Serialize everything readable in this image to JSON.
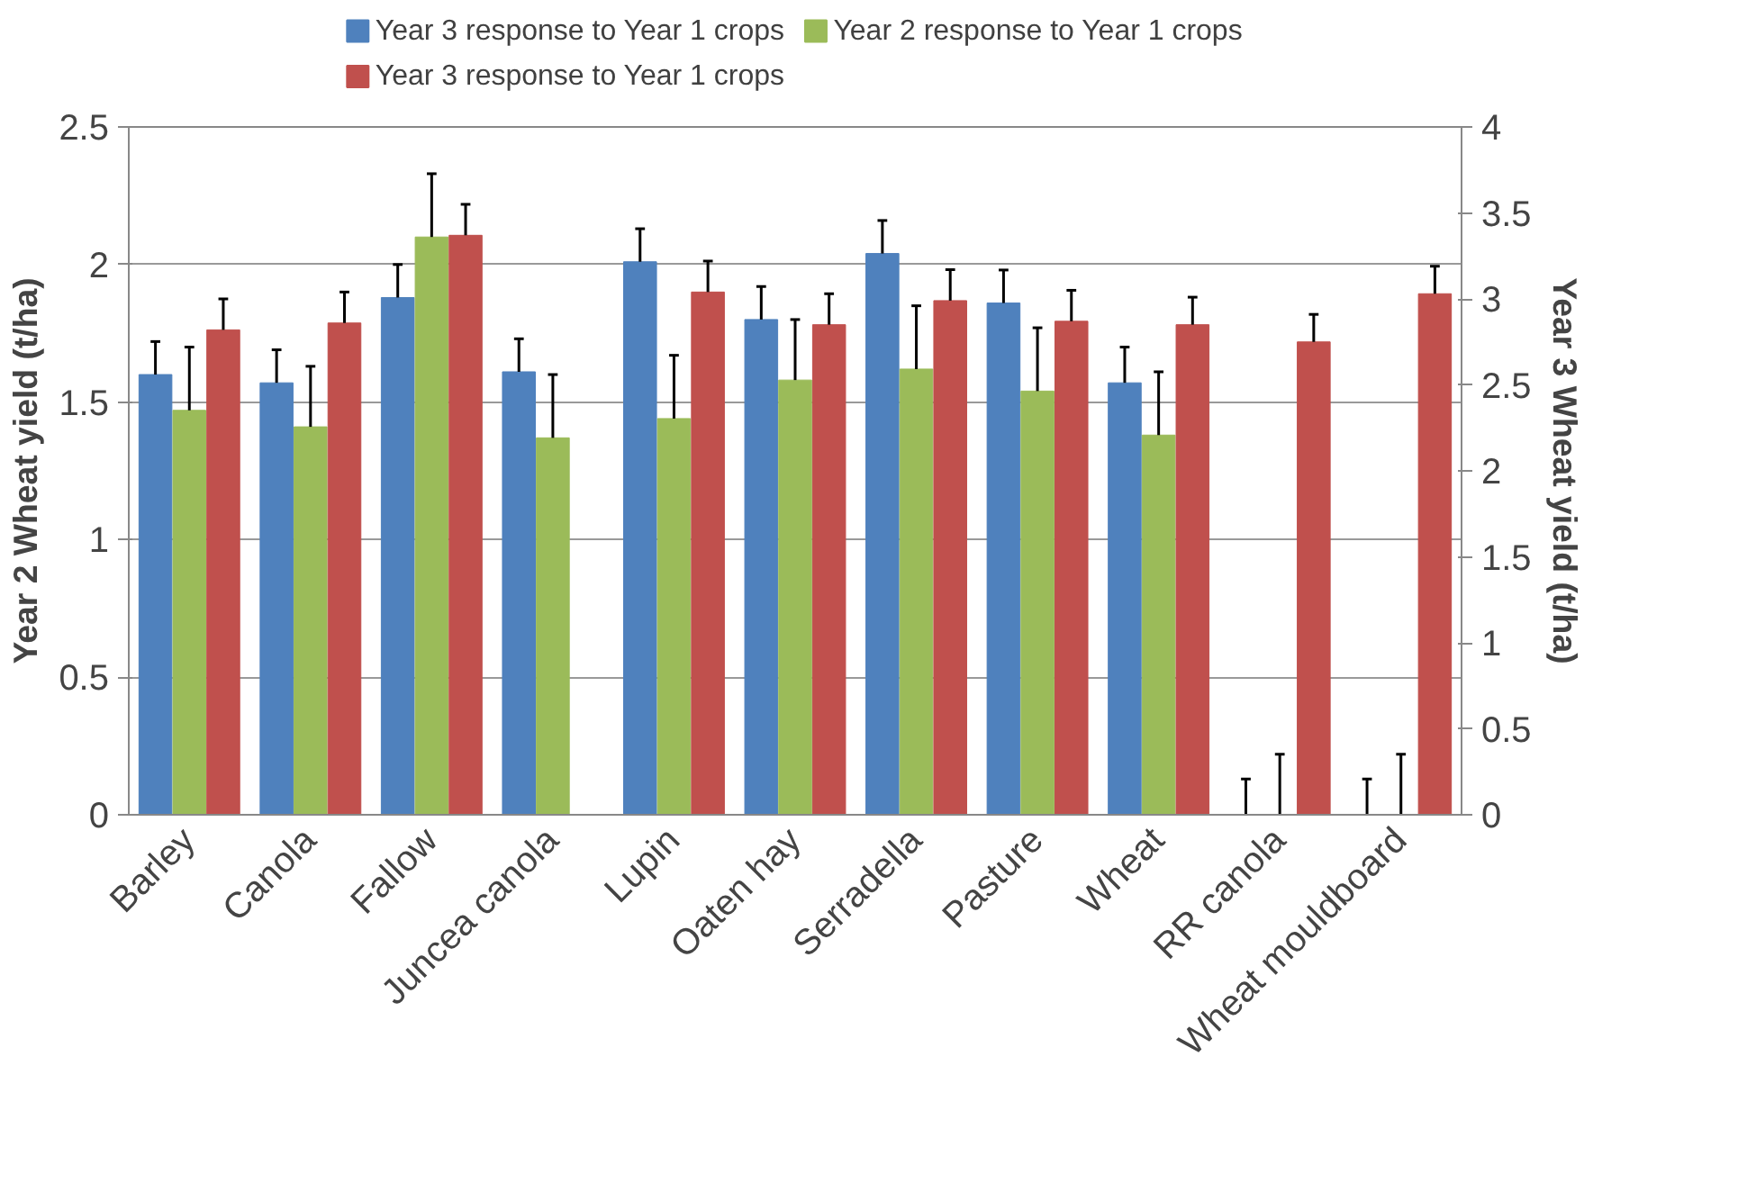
{
  "chart_data": {
    "type": "bar",
    "categories": [
      "Barley",
      "Canola",
      "Fallow",
      "Juncea canola",
      "Lupin",
      "Oaten hay",
      "Serradella",
      "Pasture",
      "Wheat",
      "RR canola",
      "Wheat mouldboard"
    ],
    "ylabel": "Year 2 Wheat yield (t/ha)",
    "y2label": "Year 3 Wheat yield (t/ha)",
    "ylim": [
      0,
      2.5
    ],
    "yticks": [
      0,
      0.5,
      1,
      1.5,
      2,
      2.5
    ],
    "y2lim": [
      0,
      4
    ],
    "y2ticks": [
      0,
      0.5,
      1,
      1.5,
      2,
      2.5,
      3,
      3.5,
      4
    ],
    "grid": "y",
    "legend": "top",
    "series": [
      {
        "name": "Year 3 response to Year 1 crops",
        "color": "#4f81bd",
        "values": [
          1.6,
          1.57,
          1.88,
          1.61,
          2.01,
          1.8,
          2.04,
          1.86,
          1.57,
          0,
          0
        ],
        "errors": [
          [
            1.6,
            1.72
          ],
          [
            1.57,
            1.69
          ],
          [
            1.88,
            2.0
          ],
          [
            1.61,
            1.73
          ],
          [
            2.01,
            2.13
          ],
          [
            1.8,
            1.92
          ],
          [
            2.04,
            2.16
          ],
          [
            1.86,
            1.98
          ],
          [
            1.57,
            1.7
          ],
          [
            0,
            0.13
          ],
          [
            0,
            0.13
          ]
        ]
      },
      {
        "name": "Year 2 response to Year 1 crops",
        "color": "#9bbb59",
        "values": [
          1.47,
          1.41,
          2.1,
          1.37,
          1.44,
          1.58,
          1.62,
          1.54,
          1.38,
          0,
          0
        ],
        "errors": [
          [
            1.47,
            1.7
          ],
          [
            1.41,
            1.63
          ],
          [
            2.1,
            2.33
          ],
          [
            1.37,
            1.6
          ],
          [
            1.44,
            1.67
          ],
          [
            1.58,
            1.8
          ],
          [
            1.62,
            1.85
          ],
          [
            1.54,
            1.77
          ],
          [
            1.38,
            1.61
          ],
          [
            0,
            0.22
          ],
          [
            0,
            0.22
          ]
        ]
      },
      {
        "name": "Year 3 response to Year 1 crops",
        "color": "#c0504d",
        "axis": "y2",
        "values": [
          2.82,
          2.86,
          3.37,
          null,
          3.04,
          2.85,
          2.99,
          2.87,
          2.85,
          2.75,
          3.03
        ],
        "errors": [
          [
            2.82,
            3.0
          ],
          [
            2.86,
            3.04
          ],
          [
            3.37,
            3.55
          ],
          null,
          [
            3.04,
            3.22
          ],
          [
            2.85,
            3.03
          ],
          [
            2.99,
            3.17
          ],
          [
            2.87,
            3.05
          ],
          [
            2.85,
            3.01
          ],
          [
            2.75,
            2.91
          ],
          [
            3.03,
            3.19
          ]
        ]
      }
    ]
  }
}
